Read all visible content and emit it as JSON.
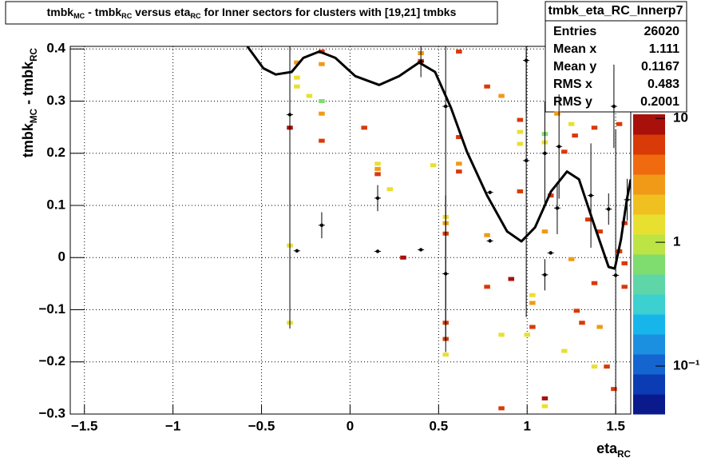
{
  "chart_data": {
    "type": "hist2d",
    "title": [
      {
        "text": "tmbk",
        "sub": "MC"
      },
      {
        "text": " - tmbk",
        "sub": "RC"
      },
      {
        "text": " versus eta",
        "sub": "RC"
      },
      {
        "text": " for Inner sectors for clusters with [19,21] tmbks"
      }
    ],
    "x_label": [
      {
        "text": "eta",
        "sub": "RC"
      }
    ],
    "y_label": [
      {
        "text": "tmbk",
        "sub": "MC"
      },
      {
        "text": " - tmbk",
        "sub": "RC"
      }
    ],
    "xlim": [
      -1.58,
      1.585
    ],
    "ylim": [
      -0.3,
      0.405
    ],
    "xticks": [
      {
        "value": -1.5,
        "label": "−1.5"
      },
      {
        "value": -1,
        "label": "−1"
      },
      {
        "value": -0.5,
        "label": "−0.5"
      },
      0,
      0.5,
      1,
      1.5
    ],
    "yticks": [
      {
        "value": -0.3,
        "label": "−0.3"
      },
      {
        "value": -0.2,
        "label": "−0.2"
      },
      {
        "value": -0.1,
        "label": "−0.1"
      },
      0,
      0.1,
      0.2,
      0.3,
      0.4
    ],
    "grid": true,
    "zlog": true,
    "zlim": [
      0.041,
      10.8
    ],
    "zticks": [
      {
        "value": 10,
        "label": "10"
      },
      {
        "value": 1,
        "label": "1"
      },
      {
        "value": 0.1,
        "label": "10⁻¹"
      }
    ],
    "palette": [
      "#0a1a8c",
      "#0b3cb4",
      "#1565d0",
      "#1b8fe0",
      "#17b6ea",
      "#3cd0d0",
      "#5fd6a8",
      "#7fdc6e",
      "#bde445",
      "#e8e030",
      "#f0c020",
      "#f09a18",
      "#f06a10",
      "#d83a08",
      "#a8100c"
    ],
    "cells": {
      "x": [
        -0.34,
        -0.34,
        -0.34,
        -0.3,
        -0.3,
        -0.3,
        -0.23,
        -0.16,
        -0.16,
        -0.16,
        -0.16,
        -0.16,
        0.08,
        0.156,
        0.156,
        0.156,
        0.225,
        0.3,
        0.4,
        0.4,
        0.47,
        0.54,
        0.54,
        0.54,
        0.54,
        0.54,
        0.54,
        0.615,
        0.615,
        0.615,
        0.615,
        0.774,
        0.774,
        0.774,
        0.855,
        0.855,
        0.855,
        0.91,
        0.96,
        0.96,
        0.96,
        0.96,
        1.0,
        1.03,
        1.03,
        1.03,
        1.1,
        1.1,
        1.1,
        1.1,
        1.1,
        1.133,
        1.17,
        1.21,
        1.21,
        1.25,
        1.25,
        1.27,
        1.28,
        1.31,
        1.345,
        1.38,
        1.38,
        1.38,
        1.41,
        1.41,
        1.45,
        1.49,
        1.52,
        1.52,
        1.55,
        1.55,
        1.55
      ],
      "y": [
        0.249,
        0.023,
        -0.125,
        0.374,
        0.345,
        0.328,
        0.31,
        0.3,
        0.276,
        0.224,
        0.371,
        0.395,
        0.249,
        0.18,
        0.17,
        0.16,
        0.131,
        0.0,
        0.392,
        0.377,
        0.177,
        0.078,
        0.066,
        0.046,
        -0.125,
        -0.156,
        -0.186,
        0.395,
        0.231,
        0.18,
        0.165,
        0.328,
        0.043,
        -0.056,
        0.31,
        -0.148,
        -0.289,
        -0.041,
        0.264,
        0.241,
        0.218,
        0.127,
        -0.148,
        -0.072,
        -0.087,
        -0.133,
        0.237,
        0.221,
        0.05,
        -0.27,
        -0.285,
        0.119,
        0.276,
        0.203,
        -0.179,
        0.256,
        -0.003,
        0.234,
        -0.102,
        -0.125,
        0.073,
        0.249,
        -0.049,
        -0.209,
        0.05,
        -0.133,
        -0.209,
        -0.252,
        0.256,
        0.012,
        0.066,
        -0.011,
        -0.056
      ],
      "values": [
        9,
        1.4,
        1.4,
        3,
        1.4,
        1.4,
        1.4,
        0.7,
        3,
        6,
        3,
        6,
        6,
        1.4,
        3,
        6,
        1.4,
        9,
        3,
        6,
        1.4,
        1.4,
        3,
        6,
        6,
        6,
        1.4,
        6,
        6,
        3,
        6,
        6,
        3,
        6,
        3,
        1.4,
        6,
        9,
        6,
        1.4,
        1.4,
        6,
        1.4,
        1.4,
        3,
        6,
        0.7,
        1.4,
        3,
        9,
        1.4,
        6,
        3,
        6,
        1.4,
        1.4,
        3,
        6,
        6,
        6,
        6,
        6,
        6,
        1.4,
        6,
        3,
        6,
        6,
        6,
        6,
        6,
        6,
        6
      ]
    },
    "profile": {
      "color": "#000000",
      "x": [
        -0.34,
        -0.3,
        -0.16,
        0.156,
        0.156,
        0.4,
        0.4,
        0.54,
        0.54,
        0.79,
        0.79,
        0.995,
        0.995,
        1.1,
        1.1,
        1.133,
        1.17,
        1.18,
        1.36,
        1.46,
        1.49,
        1.5,
        1.565
      ],
      "values": [
        0.274,
        0.013,
        0.062,
        0.114,
        0.012,
        0.015,
        0.376,
        0.29,
        -0.031,
        0.125,
        0.032,
        0.378,
        0.186,
        0.2,
        -0.033,
        0.009,
        0.095,
        0.213,
        0.119,
        0.093,
        0.29,
        -0.034,
        0.111
      ],
      "errors": [
        0.41,
        0.003,
        0.025,
        0.025,
        0.003,
        0.003,
        0.03,
        0.45,
        0.15,
        0.003,
        0.003,
        0.1,
        0.3,
        0.1,
        0.03,
        0.003,
        0.05,
        0.1,
        0.1,
        0.03,
        0.08,
        0.28,
        0.04
      ]
    },
    "fit": {
      "color": "#000000",
      "x": [
        -0.58,
        -0.49,
        -0.42,
        -0.33,
        -0.264,
        -0.174,
        -0.083,
        0.029,
        0.165,
        0.277,
        0.39,
        0.48,
        0.57,
        0.66,
        0.774,
        0.887,
        0.968,
        1.045,
        1.135,
        1.225,
        1.293,
        1.383,
        1.46,
        1.495,
        1.53,
        1.563,
        1.585
      ],
      "y": [
        0.405,
        0.363,
        0.351,
        0.356,
        0.383,
        0.395,
        0.383,
        0.348,
        0.331,
        0.348,
        0.374,
        0.356,
        0.287,
        0.203,
        0.119,
        0.05,
        0.031,
        0.058,
        0.127,
        0.165,
        0.15,
        0.058,
        -0.018,
        -0.021,
        0.035,
        0.111,
        0.15
      ]
    }
  },
  "stats": {
    "title": "tmbk_eta_RC_Innerp7",
    "rows": [
      [
        "Entries",
        26020
      ],
      [
        "Mean x",
        1.111
      ],
      [
        "Mean y",
        0.1167
      ],
      [
        "RMS x",
        0.483
      ],
      [
        "RMS y",
        0.2001
      ]
    ]
  }
}
